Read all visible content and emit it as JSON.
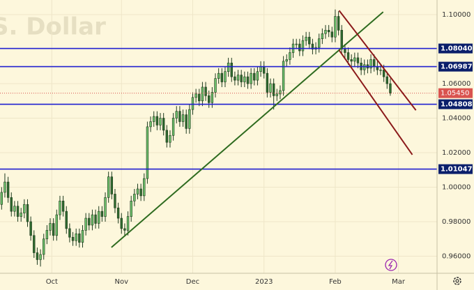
{
  "chart_data": {
    "type": "candlestick",
    "watermark": "S. Dollar",
    "up_color": "#6cbf6a",
    "down_color": "#2f6b2f",
    "xlim": [
      -0.5,
      134
    ],
    "xticks": [
      {
        "value": 15.5,
        "label": "Oct"
      },
      {
        "value": 37,
        "label": "Nov"
      },
      {
        "value": 59,
        "label": "Dec"
      },
      {
        "value": 81,
        "label": "2023"
      },
      {
        "value": 103,
        "label": "Feb"
      },
      {
        "value": 122.5,
        "label": "Mar"
      }
    ],
    "ylim": [
      0.9501,
      1.1085
    ],
    "yticks": [
      {
        "value": 0.96,
        "label": "0.96000"
      },
      {
        "value": 0.98,
        "label": "0.98000"
      },
      {
        "value": 1.0,
        "label": "1.00000"
      },
      {
        "value": 1.02,
        "label": "1.02000"
      },
      {
        "value": 1.04,
        "label": "1.04000"
      },
      {
        "value": 1.06,
        "label": "1.06000"
      },
      {
        "value": 1.1,
        "label": "1.10000"
      }
    ],
    "grid": true,
    "candles": {
      "open": [
        0.99,
        0.997,
        1.003,
        0.994,
        0.986,
        0.989,
        0.983,
        0.985,
        0.99,
        0.98,
        0.972,
        0.962,
        0.958,
        0.961,
        0.97,
        0.975,
        0.979,
        0.972,
        0.984,
        0.992,
        0.986,
        0.976,
        0.971,
        0.969,
        0.973,
        0.968,
        0.975,
        0.982,
        0.978,
        0.984,
        0.979,
        0.986,
        0.983,
        0.994,
        1.006,
        0.996,
        0.988,
        0.982,
        0.976,
        0.975,
        0.983,
        0.992,
        0.996,
        0.999,
        0.995,
        1.005,
        1.035,
        1.038,
        1.041,
        1.036,
        1.04,
        1.033,
        1.026,
        1.03,
        1.04,
        1.044,
        1.038,
        1.042,
        1.034,
        1.045,
        1.052,
        1.054,
        1.05,
        1.058,
        1.053,
        1.049,
        1.055,
        1.063,
        1.066,
        1.061,
        1.067,
        1.072,
        1.064,
        1.062,
        1.065,
        1.061,
        1.064,
        1.06,
        1.066,
        1.062,
        1.067,
        1.07,
        1.066,
        1.055,
        1.06,
        1.053,
        1.054,
        1.056,
        1.073,
        1.074,
        1.078,
        1.083,
        1.083,
        1.079,
        1.085,
        1.087,
        1.083,
        1.08,
        1.081,
        1.086,
        1.089,
        1.091,
        1.09,
        1.087,
        1.099,
        1.091,
        1.08,
        1.078,
        1.074,
        1.073,
        1.075,
        1.072,
        1.068,
        1.071,
        1.069,
        1.074,
        1.07,
        1.068,
        1.068,
        1.064,
        1.06
      ],
      "high": [
        1.0,
        1.008,
        1.006,
        0.997,
        0.992,
        0.992,
        0.988,
        0.993,
        0.993,
        0.983,
        0.975,
        0.965,
        0.964,
        0.973,
        0.978,
        0.982,
        0.982,
        0.987,
        0.995,
        0.995,
        0.989,
        0.979,
        0.974,
        0.976,
        0.976,
        0.978,
        0.985,
        0.985,
        0.987,
        0.987,
        0.989,
        0.989,
        0.997,
        1.009,
        1.009,
        0.999,
        0.991,
        0.985,
        0.979,
        0.986,
        0.995,
        0.999,
        1.002,
        1.002,
        1.008,
        1.038,
        1.041,
        1.044,
        1.044,
        1.043,
        1.043,
        1.036,
        1.033,
        1.043,
        1.047,
        1.047,
        1.045,
        1.045,
        1.048,
        1.055,
        1.057,
        1.057,
        1.061,
        1.061,
        1.056,
        1.058,
        1.066,
        1.069,
        1.069,
        1.07,
        1.075,
        1.075,
        1.067,
        1.068,
        1.068,
        1.067,
        1.067,
        1.069,
        1.069,
        1.07,
        1.073,
        1.073,
        1.069,
        1.063,
        1.063,
        1.057,
        1.059,
        1.076,
        1.077,
        1.081,
        1.086,
        1.086,
        1.086,
        1.088,
        1.09,
        1.09,
        1.086,
        1.084,
        1.089,
        1.092,
        1.094,
        1.094,
        1.093,
        1.103,
        1.102,
        1.094,
        1.083,
        1.081,
        1.077,
        1.078,
        1.078,
        1.075,
        1.074,
        1.074,
        1.077,
        1.077,
        1.073,
        1.071,
        1.071,
        1.067,
        1.063
      ],
      "low": [
        0.987,
        0.994,
        0.991,
        0.983,
        0.983,
        0.98,
        0.98,
        0.982,
        0.977,
        0.969,
        0.959,
        0.955,
        0.954,
        0.958,
        0.967,
        0.972,
        0.969,
        0.969,
        0.981,
        0.983,
        0.973,
        0.968,
        0.966,
        0.966,
        0.965,
        0.965,
        0.972,
        0.975,
        0.975,
        0.976,
        0.976,
        0.98,
        0.98,
        0.991,
        0.993,
        0.985,
        0.979,
        0.973,
        0.972,
        0.972,
        0.98,
        0.989,
        0.993,
        0.992,
        0.992,
        1.002,
        1.032,
        1.035,
        1.033,
        1.033,
        1.03,
        1.023,
        1.023,
        1.027,
        1.037,
        1.035,
        1.035,
        1.031,
        1.031,
        1.042,
        1.049,
        1.047,
        1.047,
        1.05,
        1.046,
        1.046,
        1.052,
        1.06,
        1.058,
        1.058,
        1.064,
        1.061,
        1.059,
        1.059,
        1.058,
        1.058,
        1.057,
        1.057,
        1.059,
        1.059,
        1.064,
        1.063,
        1.052,
        1.052,
        1.045,
        1.05,
        1.051,
        1.053,
        1.07,
        1.071,
        1.075,
        1.08,
        1.076,
        1.076,
        1.082,
        1.08,
        1.077,
        1.077,
        1.078,
        1.083,
        1.086,
        1.087,
        1.084,
        1.084,
        1.088,
        1.077,
        1.075,
        1.071,
        1.07,
        1.07,
        1.069,
        1.065,
        1.065,
        1.066,
        1.066,
        1.067,
        1.065,
        1.065,
        1.061,
        1.057,
        1.053
      ],
      "close": [
        0.997,
        1.003,
        0.994,
        0.986,
        0.989,
        0.983,
        0.985,
        0.99,
        0.98,
        0.972,
        0.962,
        0.958,
        0.961,
        0.97,
        0.975,
        0.979,
        0.972,
        0.984,
        0.992,
        0.986,
        0.976,
        0.971,
        0.969,
        0.973,
        0.968,
        0.975,
        0.982,
        0.978,
        0.984,
        0.979,
        0.986,
        0.983,
        0.994,
        1.006,
        0.996,
        0.988,
        0.982,
        0.976,
        0.975,
        0.983,
        0.992,
        0.996,
        0.999,
        0.995,
        1.005,
        1.035,
        1.038,
        1.041,
        1.036,
        1.04,
        1.033,
        1.026,
        1.03,
        1.04,
        1.044,
        1.038,
        1.042,
        1.034,
        1.045,
        1.052,
        1.054,
        1.05,
        1.058,
        1.053,
        1.049,
        1.055,
        1.063,
        1.066,
        1.061,
        1.067,
        1.072,
        1.064,
        1.062,
        1.065,
        1.061,
        1.064,
        1.06,
        1.066,
        1.062,
        1.067,
        1.07,
        1.066,
        1.055,
        1.06,
        1.053,
        1.054,
        1.056,
        1.073,
        1.074,
        1.078,
        1.083,
        1.083,
        1.079,
        1.085,
        1.087,
        1.083,
        1.08,
        1.081,
        1.086,
        1.089,
        1.091,
        1.09,
        1.087,
        1.099,
        1.091,
        1.08,
        1.078,
        1.074,
        1.073,
        1.075,
        1.072,
        1.068,
        1.071,
        1.069,
        1.074,
        1.07,
        1.068,
        1.068,
        1.064,
        1.06,
        1.0545
      ]
    },
    "levels": [
      {
        "value": 1.0804,
        "label": "1.08040"
      },
      {
        "value": 1.06987,
        "label": "1.06987"
      },
      {
        "value": 1.04808,
        "label": "1.04808"
      },
      {
        "value": 1.01047,
        "label": "1.01047"
      }
    ],
    "level_color": "#1f1fd0",
    "last_price": {
      "value": 1.0545,
      "label": "1.05450"
    },
    "last_price_color": "#d9534f",
    "trend_lines": [
      {
        "color": "#2e6b1f",
        "x": [
          33.9,
          117.8
        ],
        "y": [
          0.9651,
          1.1016
        ]
      },
      {
        "color": "#8b1a1a",
        "x": [
          104.2,
          127.9
        ],
        "y": [
          1.1024,
          1.0446
        ]
      },
      {
        "color": "#8b1a1a",
        "x": [
          104.2,
          126.8
        ],
        "y": [
          1.0794,
          1.0188
        ]
      }
    ]
  }
}
